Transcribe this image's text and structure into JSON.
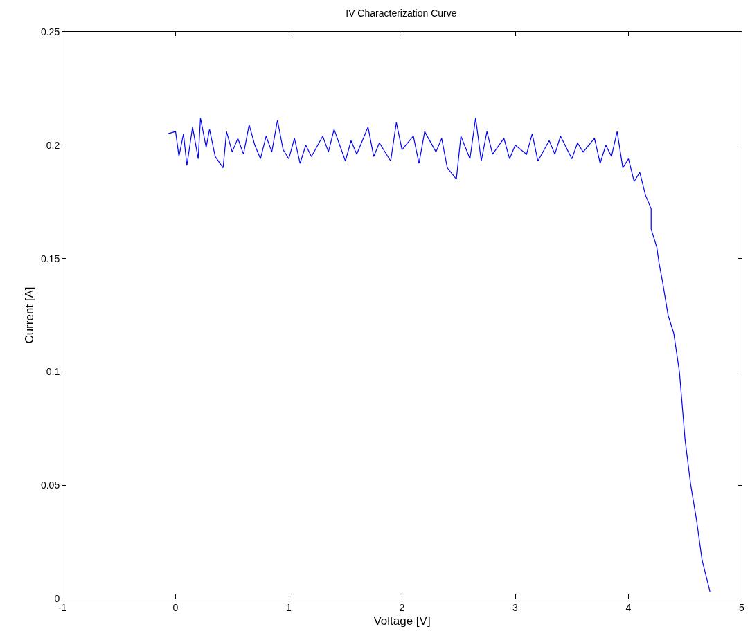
{
  "chart_data": {
    "type": "line",
    "title": "IV Characterization Curve",
    "xlabel": "Voltage [V]",
    "ylabel": "Current [A]",
    "xlim": [
      -1,
      5
    ],
    "xticks": [
      -1,
      0,
      1,
      2,
      3,
      4,
      5
    ],
    "ylim": [
      0,
      0.25
    ],
    "yticks": [
      0,
      0.05,
      0.1,
      0.15,
      0.2,
      0.25
    ],
    "grid": false,
    "marker": "none",
    "line_style": "solid",
    "series": [
      {
        "color": "#0000ff",
        "x": [
          -0.07,
          0.0,
          0.03,
          0.07,
          0.1,
          0.15,
          0.2,
          0.22,
          0.27,
          0.3,
          0.35,
          0.42,
          0.45,
          0.5,
          0.55,
          0.6,
          0.65,
          0.7,
          0.75,
          0.8,
          0.85,
          0.9,
          0.95,
          1.0,
          1.05,
          1.1,
          1.15,
          1.2,
          1.3,
          1.35,
          1.4,
          1.5,
          1.55,
          1.6,
          1.7,
          1.75,
          1.8,
          1.9,
          1.95,
          2.0,
          2.1,
          2.15,
          2.2,
          2.3,
          2.35,
          2.4,
          2.48,
          2.52,
          2.6,
          2.65,
          2.7,
          2.75,
          2.8,
          2.9,
          2.95,
          3.0,
          3.1,
          3.15,
          3.2,
          3.3,
          3.35,
          3.4,
          3.5,
          3.55,
          3.6,
          3.7,
          3.75,
          3.8,
          3.85,
          3.9,
          3.95,
          4.0,
          4.05,
          4.1,
          4.15,
          4.2,
          4.2,
          4.25,
          4.27,
          4.3,
          4.35,
          4.4,
          4.45,
          4.5,
          4.55,
          4.6,
          4.65,
          4.72
        ],
        "values": [
          0.205,
          0.206,
          0.195,
          0.205,
          0.191,
          0.208,
          0.194,
          0.212,
          0.199,
          0.207,
          0.195,
          0.19,
          0.206,
          0.197,
          0.203,
          0.196,
          0.209,
          0.2,
          0.194,
          0.204,
          0.197,
          0.211,
          0.198,
          0.194,
          0.203,
          0.192,
          0.2,
          0.195,
          0.204,
          0.197,
          0.207,
          0.193,
          0.202,
          0.196,
          0.208,
          0.195,
          0.201,
          0.193,
          0.21,
          0.198,
          0.204,
          0.192,
          0.206,
          0.197,
          0.203,
          0.19,
          0.185,
          0.204,
          0.194,
          0.212,
          0.193,
          0.206,
          0.196,
          0.203,
          0.194,
          0.2,
          0.196,
          0.205,
          0.193,
          0.202,
          0.196,
          0.204,
          0.194,
          0.201,
          0.197,
          0.203,
          0.192,
          0.2,
          0.195,
          0.206,
          0.19,
          0.194,
          0.184,
          0.188,
          0.178,
          0.172,
          0.163,
          0.155,
          0.148,
          0.14,
          0.125,
          0.117,
          0.1,
          0.07,
          0.05,
          0.035,
          0.017,
          0.003
        ]
      }
    ]
  }
}
